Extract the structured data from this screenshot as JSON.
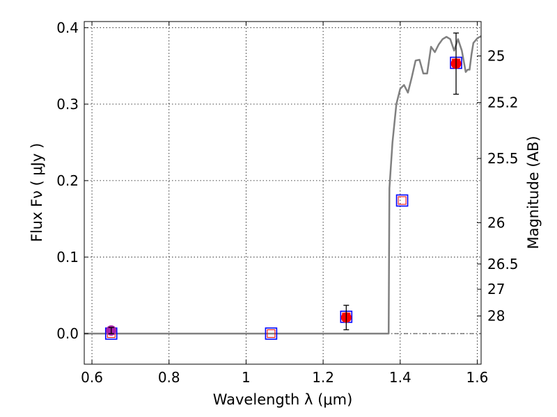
{
  "chart_data": {
    "type": "scatter",
    "title": "",
    "xlabel": "Wavelength  λ (μm)",
    "ylabel": "Flux  Fν  ( μJy )",
    "y2label": "Magnitude (AB)",
    "xlim": [
      0.58,
      1.61
    ],
    "ylim": [
      -0.04,
      0.408
    ],
    "grid": true,
    "x_ticks": [
      0.6,
      0.8,
      1.0,
      1.2,
      1.4,
      1.6
    ],
    "x_tick_labels": [
      "0.6",
      "0.8",
      "1",
      "1.2",
      "1.4",
      "1.6"
    ],
    "y_ticks": [
      0.0,
      0.1,
      0.2,
      0.3,
      0.4
    ],
    "y_tick_labels": [
      "0.0",
      "0.1",
      "0.2",
      "0.3",
      "0.4"
    ],
    "y2_ticks": [
      {
        "label": "25",
        "flux": 0.363
      },
      {
        "label": "25.2",
        "flux": 0.302
      },
      {
        "label": "25.5",
        "flux": 0.229
      },
      {
        "label": "26",
        "flux": 0.145
      },
      {
        "label": "26.5",
        "flux": 0.091
      },
      {
        "label": "27",
        "flux": 0.058
      },
      {
        "label": "28",
        "flux": 0.023
      }
    ],
    "model_spectrum": {
      "color": "#808080",
      "x": [
        0.58,
        1.37,
        1.372,
        1.38,
        1.39,
        1.4,
        1.41,
        1.42,
        1.43,
        1.44,
        1.45,
        1.46,
        1.47,
        1.48,
        1.49,
        1.5,
        1.51,
        1.52,
        1.53,
        1.54,
        1.55,
        1.56,
        1.57,
        1.575,
        1.58,
        1.585,
        1.59,
        1.6,
        1.61
      ],
      "y": [
        0.0,
        0.0,
        0.19,
        0.25,
        0.3,
        0.32,
        0.325,
        0.315,
        0.335,
        0.357,
        0.358,
        0.34,
        0.34,
        0.375,
        0.368,
        0.378,
        0.385,
        0.388,
        0.385,
        0.37,
        0.385,
        0.37,
        0.342,
        0.345,
        0.345,
        0.365,
        0.38,
        0.386,
        0.389
      ]
    },
    "zero_line": {
      "y": 0.0,
      "style": "dash-dot",
      "color": "#000000"
    },
    "model_points": {
      "marker": "open square",
      "colors": [
        "#0000ff",
        "#ff0000"
      ],
      "points": [
        {
          "x": 0.65,
          "y": 0.0
        },
        {
          "x": 1.065,
          "y": 0.0
        },
        {
          "x": 1.26,
          "y": 0.022
        },
        {
          "x": 1.405,
          "y": 0.174
        },
        {
          "x": 1.545,
          "y": 0.354
        }
      ]
    },
    "observed": {
      "marker": "filled circle",
      "points": [
        {
          "x": 0.65,
          "y": 0.004,
          "err": 0.004,
          "color": "#aa22aa"
        },
        {
          "x": 1.26,
          "y": 0.021,
          "err": 0.016,
          "color": "#ff0000"
        },
        {
          "x": 1.545,
          "y": 0.353,
          "err": 0.04,
          "color": "#ff0000"
        }
      ]
    }
  }
}
